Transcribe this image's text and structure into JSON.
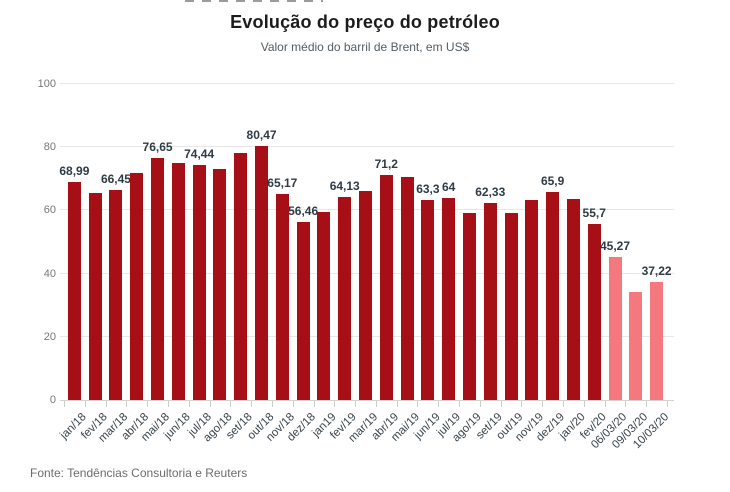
{
  "header": {
    "title": "Evolução do preço do petróleo",
    "subtitle": "Valor médio do barril de Brent, em US$"
  },
  "footer": {
    "source": "Fonte: Tendências Consultoria e Reuters"
  },
  "colors": {
    "bar_default": "#a50f15",
    "bar_highlight": "#f4797e",
    "grid": "#e7e7e7",
    "axis_line": "#d2d2d2",
    "value_label": "#2e3b45",
    "tick_label": "#37424a"
  },
  "chart_data": {
    "type": "bar",
    "title": "Evolução do preço do petróleo",
    "subtitle": "Valor médio do barril de Brent, em US$",
    "unit": "US$ por barril (Brent, valor médio)",
    "categories": [
      "jan/18",
      "fev/18",
      "mar/18",
      "abr/18",
      "mai/18",
      "jun/18",
      "jul/18",
      "ago/18",
      "set/18",
      "out/18",
      "nov/18",
      "dez/18",
      "jan19",
      "fev/19",
      "mar/19",
      "abr/19",
      "mai/19",
      "jun/19",
      "jul/19",
      "ago/19",
      "set/19",
      "out/19",
      "nov/19",
      "dez/19",
      "jan/20",
      "fev/20",
      "06/03/20",
      "09/03/20",
      "10/03/20"
    ],
    "values": [
      68.99,
      65.6,
      66.45,
      71.8,
      76.65,
      75.1,
      74.44,
      73.2,
      78.3,
      80.47,
      65.17,
      56.46,
      59.4,
      64.13,
      66.3,
      71.2,
      70.6,
      63.3,
      64,
      59.2,
      62.33,
      59.2,
      63.2,
      65.9,
      63.5,
      55.7,
      45.27,
      34.2,
      37.22
    ],
    "data_labels": [
      "68,99",
      null,
      "66,45",
      null,
      "76,65",
      null,
      "74,44",
      null,
      null,
      "80,47",
      "65,17",
      "56,46",
      null,
      "64,13",
      null,
      "71,2",
      null,
      "63,3",
      "64",
      null,
      "62,33",
      null,
      null,
      "65,9",
      null,
      "55,7",
      "45,27",
      null,
      "37,22"
    ],
    "highlighted_categories": [
      "06/03/20",
      "09/03/20",
      "10/03/20"
    ],
    "y_ticks": [
      0,
      20,
      40,
      60,
      80,
      100
    ],
    "ylim": [
      0,
      100
    ],
    "grid": true,
    "legend_position": "none"
  }
}
